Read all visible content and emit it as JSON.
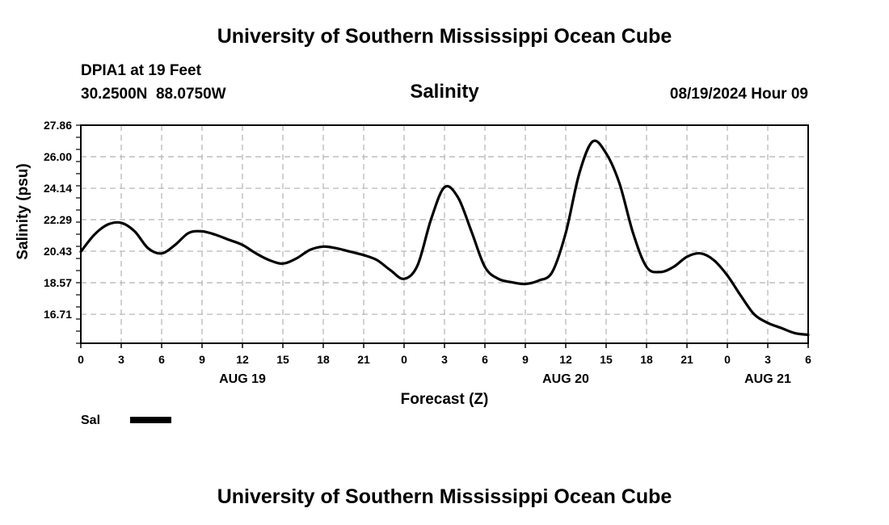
{
  "header": {
    "top_title": "University of Southern Mississippi Ocean Cube",
    "station": "DPIA1 at 19 Feet",
    "coords": "30.2500N  88.0750W",
    "datetime": "08/19/2024 Hour 09",
    "bottom_title": "University of Southern Mississippi Ocean Cube"
  },
  "chart_data": {
    "type": "line",
    "title": "Salinity",
    "xlabel": "Forecast (Z)",
    "ylabel": "Salinity (psu)",
    "ylim": [
      15.0,
      27.86
    ],
    "yticks": [
      "16.71",
      "18.57",
      "20.43",
      "22.29",
      "24.14",
      "26.00",
      "27.86"
    ],
    "xlim": [
      0,
      54
    ],
    "xticks": [
      "0",
      "3",
      "6",
      "9",
      "12",
      "15",
      "18",
      "21",
      "0",
      "3",
      "6",
      "9",
      "12",
      "15",
      "18",
      "21",
      "0",
      "3",
      "6"
    ],
    "date_labels": [
      {
        "label": "AUG 19",
        "hour": 12
      },
      {
        "label": "AUG 20",
        "hour": 36
      },
      {
        "label": "AUG 21",
        "hour": 51
      }
    ],
    "grid": true,
    "legend": "bottom-left",
    "series": [
      {
        "name": "Sal",
        "color": "#000000",
        "x": [
          0,
          1,
          2,
          3,
          4,
          5,
          6,
          7,
          8,
          9,
          10,
          11,
          12,
          13,
          14,
          15,
          16,
          17,
          18,
          19,
          20,
          21,
          22,
          23,
          24,
          25,
          26,
          27,
          28,
          29,
          30,
          31,
          32,
          33,
          34,
          35,
          36,
          37,
          38,
          39,
          40,
          41,
          42,
          43,
          44,
          45,
          46,
          47,
          48,
          49,
          50,
          51,
          52,
          53,
          54
        ],
        "values": [
          20.4,
          21.4,
          22.0,
          22.1,
          21.6,
          20.6,
          20.3,
          20.8,
          21.5,
          21.6,
          21.4,
          21.1,
          20.8,
          20.3,
          19.9,
          19.7,
          20.0,
          20.5,
          20.7,
          20.6,
          20.4,
          20.2,
          19.9,
          19.3,
          18.8,
          19.6,
          22.3,
          24.2,
          23.6,
          21.6,
          19.5,
          18.8,
          18.6,
          18.5,
          18.7,
          19.2,
          21.5,
          25.0,
          26.9,
          26.2,
          24.4,
          21.5,
          19.5,
          19.2,
          19.5,
          20.1,
          20.3,
          19.9,
          19.0,
          17.8,
          16.7,
          16.2,
          15.9,
          15.6,
          15.5
        ]
      }
    ]
  }
}
